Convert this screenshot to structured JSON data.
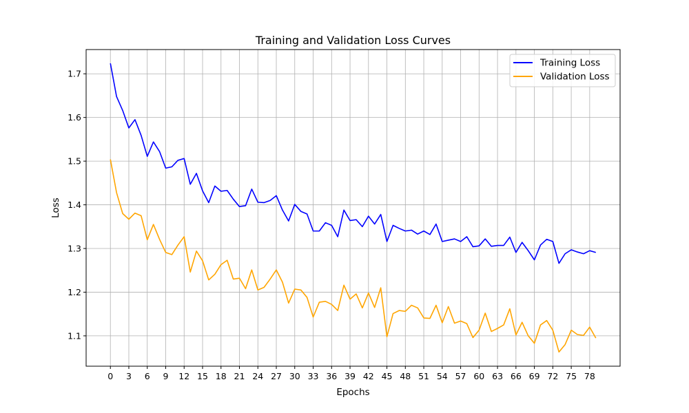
{
  "chart_data": {
    "type": "line",
    "title": "Training and Validation Loss Curves",
    "xlabel": "Epochs",
    "ylabel": "Loss",
    "xlim": [
      -3.95,
      82.95
    ],
    "ylim": [
      1.0305,
      1.7555
    ],
    "xticks": [
      0,
      3,
      6,
      9,
      12,
      15,
      18,
      21,
      24,
      27,
      30,
      33,
      36,
      39,
      42,
      45,
      48,
      51,
      54,
      57,
      60,
      63,
      66,
      69,
      72,
      75,
      78
    ],
    "yticks": [
      1.1,
      1.2,
      1.3,
      1.4,
      1.5,
      1.6,
      1.7
    ],
    "grid": true,
    "legend_position": "top-right",
    "series": [
      {
        "name": "Training Loss",
        "color": "#0000ff",
        "values": [
          1.724,
          1.648,
          1.616,
          1.576,
          1.595,
          1.559,
          1.511,
          1.544,
          1.522,
          1.484,
          1.487,
          1.502,
          1.506,
          1.447,
          1.472,
          1.432,
          1.405,
          1.443,
          1.431,
          1.433,
          1.413,
          1.396,
          1.398,
          1.436,
          1.406,
          1.405,
          1.41,
          1.421,
          1.388,
          1.363,
          1.401,
          1.385,
          1.379,
          1.34,
          1.34,
          1.359,
          1.353,
          1.327,
          1.388,
          1.364,
          1.366,
          1.35,
          1.374,
          1.356,
          1.378,
          1.316,
          1.353,
          1.346,
          1.34,
          1.342,
          1.333,
          1.34,
          1.332,
          1.356,
          1.316,
          1.319,
          1.322,
          1.316,
          1.327,
          1.304,
          1.306,
          1.322,
          1.305,
          1.307,
          1.307,
          1.326,
          1.291,
          1.314,
          1.295,
          1.274,
          1.308,
          1.321,
          1.316,
          1.266,
          1.288,
          1.297,
          1.292,
          1.288,
          1.295,
          1.291
        ]
      },
      {
        "name": "Validation Loss",
        "color": "#ffa500",
        "values": [
          1.504,
          1.428,
          1.38,
          1.367,
          1.381,
          1.375,
          1.32,
          1.355,
          1.321,
          1.291,
          1.286,
          1.308,
          1.327,
          1.246,
          1.294,
          1.272,
          1.228,
          1.241,
          1.263,
          1.273,
          1.23,
          1.232,
          1.208,
          1.251,
          1.205,
          1.211,
          1.23,
          1.251,
          1.223,
          1.175,
          1.207,
          1.205,
          1.188,
          1.143,
          1.177,
          1.179,
          1.172,
          1.158,
          1.216,
          1.184,
          1.196,
          1.164,
          1.198,
          1.165,
          1.21,
          1.098,
          1.151,
          1.158,
          1.156,
          1.17,
          1.164,
          1.141,
          1.14,
          1.17,
          1.13,
          1.167,
          1.129,
          1.134,
          1.128,
          1.096,
          1.113,
          1.152,
          1.11,
          1.117,
          1.125,
          1.162,
          1.102,
          1.131,
          1.1,
          1.083,
          1.125,
          1.135,
          1.113,
          1.063,
          1.08,
          1.113,
          1.103,
          1.101,
          1.12,
          1.095
        ]
      }
    ]
  }
}
